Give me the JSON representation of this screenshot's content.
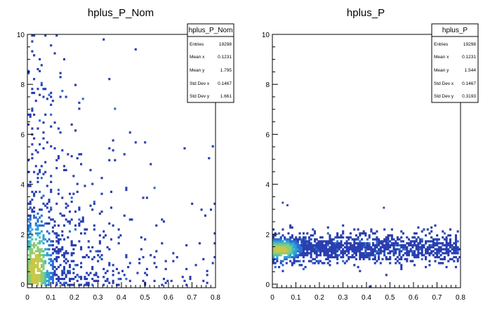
{
  "chart_data": [
    {
      "type": "heatmap",
      "title": "hplus_P_Nom",
      "xlim": [
        0,
        0.8
      ],
      "ylim": [
        -0.3,
        10
      ],
      "x_ticks": [
        "0",
        "0.1",
        "0.2",
        "0.3",
        "0.4",
        "0.5",
        "0.6",
        "0.7",
        "0.8"
      ],
      "y_ticks": [
        "0",
        "2",
        "4",
        "6",
        "8",
        "10"
      ],
      "x_tick_values": [
        0,
        0.1,
        0.2,
        0.3,
        0.4,
        0.5,
        0.6,
        0.7,
        0.8
      ],
      "y_tick_values": [
        0,
        2,
        4,
        6,
        8,
        10
      ],
      "colormap": [
        "#2a3fb0",
        "#2c6fd3",
        "#2fa0d8",
        "#4cc2b4",
        "#8ccc73",
        "#c8c84a"
      ],
      "hotspot": {
        "x": 0.035,
        "y": 0.6
      },
      "stats": {
        "name": "hplus_P_Nom",
        "rows": [
          {
            "label": "Entries",
            "value": "19298"
          },
          {
            "label": "Mean x",
            "value": "0.1231"
          },
          {
            "label": "Mean y",
            "value": "1.795"
          },
          {
            "label": "Std Dev x",
            "value": "0.1467"
          },
          {
            "label": "Std Dev y",
            "value": "1.661"
          }
        ]
      }
    },
    {
      "type": "heatmap",
      "title": "hplus_P",
      "xlim": [
        0,
        0.8
      ],
      "ylim": [
        -0.3,
        10
      ],
      "x_ticks": [
        "0",
        "0.1",
        "0.2",
        "0.3",
        "0.4",
        "0.5",
        "0.6",
        "0.7",
        "0.8"
      ],
      "y_ticks": [
        "0",
        "2",
        "4",
        "6",
        "8",
        "10"
      ],
      "x_tick_values": [
        0,
        0.1,
        0.2,
        0.3,
        0.4,
        0.5,
        0.6,
        0.7,
        0.8
      ],
      "y_tick_values": [
        0,
        2,
        4,
        6,
        8,
        10
      ],
      "colormap": [
        "#2a3fb0",
        "#2c6fd3",
        "#2fa0d8",
        "#4cc2b4",
        "#8ccc73",
        "#c8c84a"
      ],
      "hotspot": {
        "x": 0.035,
        "y": 1.4
      },
      "stats": {
        "name": "hplus_P",
        "rows": [
          {
            "label": "Entries",
            "value": "19298"
          },
          {
            "label": "Mean x",
            "value": "0.1231"
          },
          {
            "label": "Mean y",
            "value": "1.544"
          },
          {
            "label": "Std Dev x",
            "value": "0.1467"
          },
          {
            "label": "Std Dev y",
            "value": "0.3193"
          }
        ]
      }
    }
  ]
}
